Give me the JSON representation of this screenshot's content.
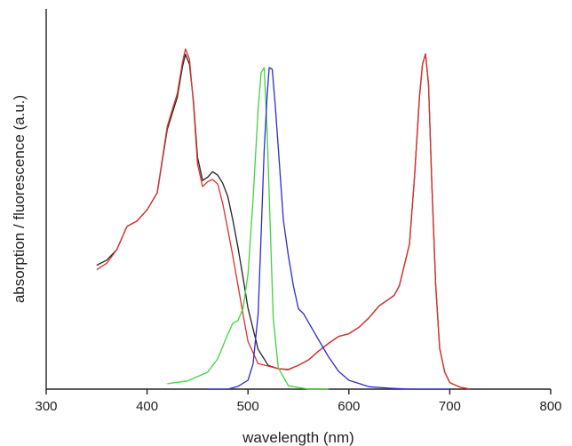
{
  "chart_data": {
    "type": "line",
    "xlabel": "wavelength (nm)",
    "ylabel": "absorption / fluorescence  (a.u.)",
    "xlim": [
      300,
      800
    ],
    "ylim": [
      0,
      1
    ],
    "xticks": [
      300,
      400,
      500,
      600,
      700,
      800
    ],
    "yticks_shown": false,
    "grid": false,
    "colors": {
      "black": "#222222",
      "red": "#e0302a",
      "green": "#3fd43f",
      "blue": "#2b2bd8"
    },
    "series": [
      {
        "color": "black",
        "x": [
          350,
          360,
          370,
          380,
          390,
          400,
          410,
          420,
          430,
          435,
          438,
          442,
          446,
          450,
          455,
          460,
          465,
          470,
          475,
          480,
          485,
          490,
          495,
          500,
          510,
          520,
          530,
          540,
          550,
          560,
          570,
          580,
          590,
          600,
          610,
          620,
          630,
          640,
          645,
          650,
          660,
          665,
          670,
          673,
          676,
          679,
          682,
          686,
          690,
          695,
          700,
          710,
          720
        ],
        "y": [
          0.364,
          0.379,
          0.41,
          0.478,
          0.494,
          0.527,
          0.577,
          0.763,
          0.859,
          0.947,
          0.984,
          0.955,
          0.844,
          0.681,
          0.613,
          0.623,
          0.639,
          0.629,
          0.605,
          0.566,
          0.496,
          0.418,
          0.33,
          0.238,
          0.117,
          0.07,
          0.06,
          0.058,
          0.07,
          0.086,
          0.112,
          0.135,
          0.155,
          0.163,
          0.182,
          0.21,
          0.245,
          0.265,
          0.276,
          0.304,
          0.426,
          0.62,
          0.86,
          0.955,
          0.985,
          0.894,
          0.617,
          0.307,
          0.12,
          0.05,
          0.019,
          0.006,
          0.0
        ]
      },
      {
        "color": "red",
        "x": [
          350,
          360,
          370,
          380,
          390,
          400,
          410,
          420,
          430,
          435,
          438,
          442,
          446,
          450,
          455,
          460,
          465,
          470,
          475,
          480,
          485,
          490,
          495,
          500,
          510,
          520,
          530,
          540,
          550,
          560,
          570,
          580,
          590,
          600,
          610,
          620,
          630,
          640,
          645,
          650,
          660,
          665,
          670,
          673,
          676,
          679,
          682,
          686,
          690,
          695,
          700,
          710,
          720
        ],
        "y": [
          0.351,
          0.37,
          0.41,
          0.478,
          0.494,
          0.527,
          0.577,
          0.772,
          0.87,
          0.96,
          1.0,
          0.97,
          0.836,
          0.661,
          0.595,
          0.61,
          0.616,
          0.603,
          0.545,
          0.469,
          0.39,
          0.307,
          0.222,
          0.14,
          0.075,
          0.068,
          0.06,
          0.057,
          0.07,
          0.086,
          0.112,
          0.135,
          0.155,
          0.163,
          0.182,
          0.21,
          0.245,
          0.265,
          0.276,
          0.304,
          0.426,
          0.62,
          0.86,
          0.955,
          0.985,
          0.894,
          0.617,
          0.307,
          0.12,
          0.05,
          0.019,
          0.006,
          0.0
        ]
      },
      {
        "color": "green",
        "x": [
          420,
          440,
          460,
          470,
          480,
          485,
          490,
          495,
          500,
          505,
          510,
          513,
          516,
          519,
          522,
          525,
          530,
          540,
          560,
          580
        ],
        "y": [
          0.016,
          0.024,
          0.05,
          0.089,
          0.162,
          0.194,
          0.201,
          0.236,
          0.337,
          0.558,
          0.822,
          0.93,
          0.945,
          0.754,
          0.482,
          0.21,
          0.063,
          0.01,
          0.0,
          0.0
        ]
      },
      {
        "color": "blue",
        "x": [
          460,
          480,
          490,
          500,
          505,
          510,
          513,
          516,
          519,
          521,
          524,
          527,
          530,
          535,
          540,
          545,
          550,
          555,
          560,
          570,
          580,
          590,
          600,
          620,
          640,
          660,
          680,
          700
        ],
        "y": [
          0.0,
          0.0,
          0.008,
          0.026,
          0.074,
          0.22,
          0.454,
          0.7,
          0.865,
          0.945,
          0.94,
          0.834,
          0.71,
          0.498,
          0.393,
          0.304,
          0.236,
          0.222,
          0.196,
          0.145,
          0.094,
          0.052,
          0.026,
          0.007,
          0.003,
          0.0,
          0.0,
          0.0
        ]
      }
    ]
  }
}
